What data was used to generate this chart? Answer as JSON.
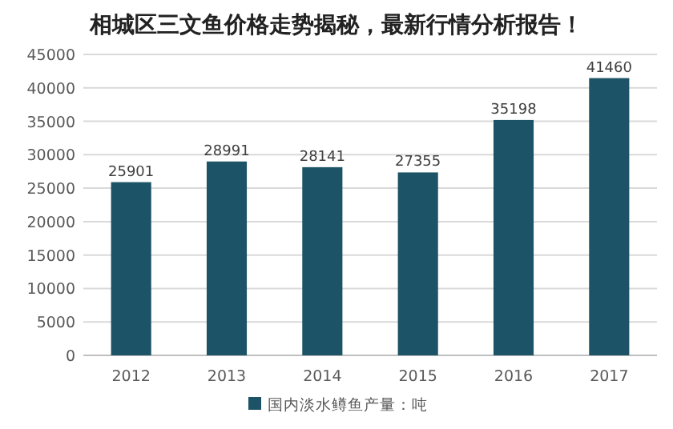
{
  "chart_data": {
    "type": "bar",
    "title": "相城区三文鱼价格走势揭秘，最新行情分析报告！",
    "categories": [
      "2012",
      "2013",
      "2014",
      "2015",
      "2016",
      "2017"
    ],
    "series": [
      {
        "name": "国内淡水鳟鱼产量：吨",
        "color": "#1d5366",
        "values": [
          25901,
          28991,
          28141,
          27355,
          35198,
          41460
        ]
      }
    ],
    "ylim": [
      0,
      45000
    ],
    "yticks": [
      0,
      5000,
      10000,
      15000,
      20000,
      25000,
      30000,
      35000,
      40000,
      45000
    ],
    "grid": "y",
    "legend": "bottom",
    "data_labels": true
  }
}
